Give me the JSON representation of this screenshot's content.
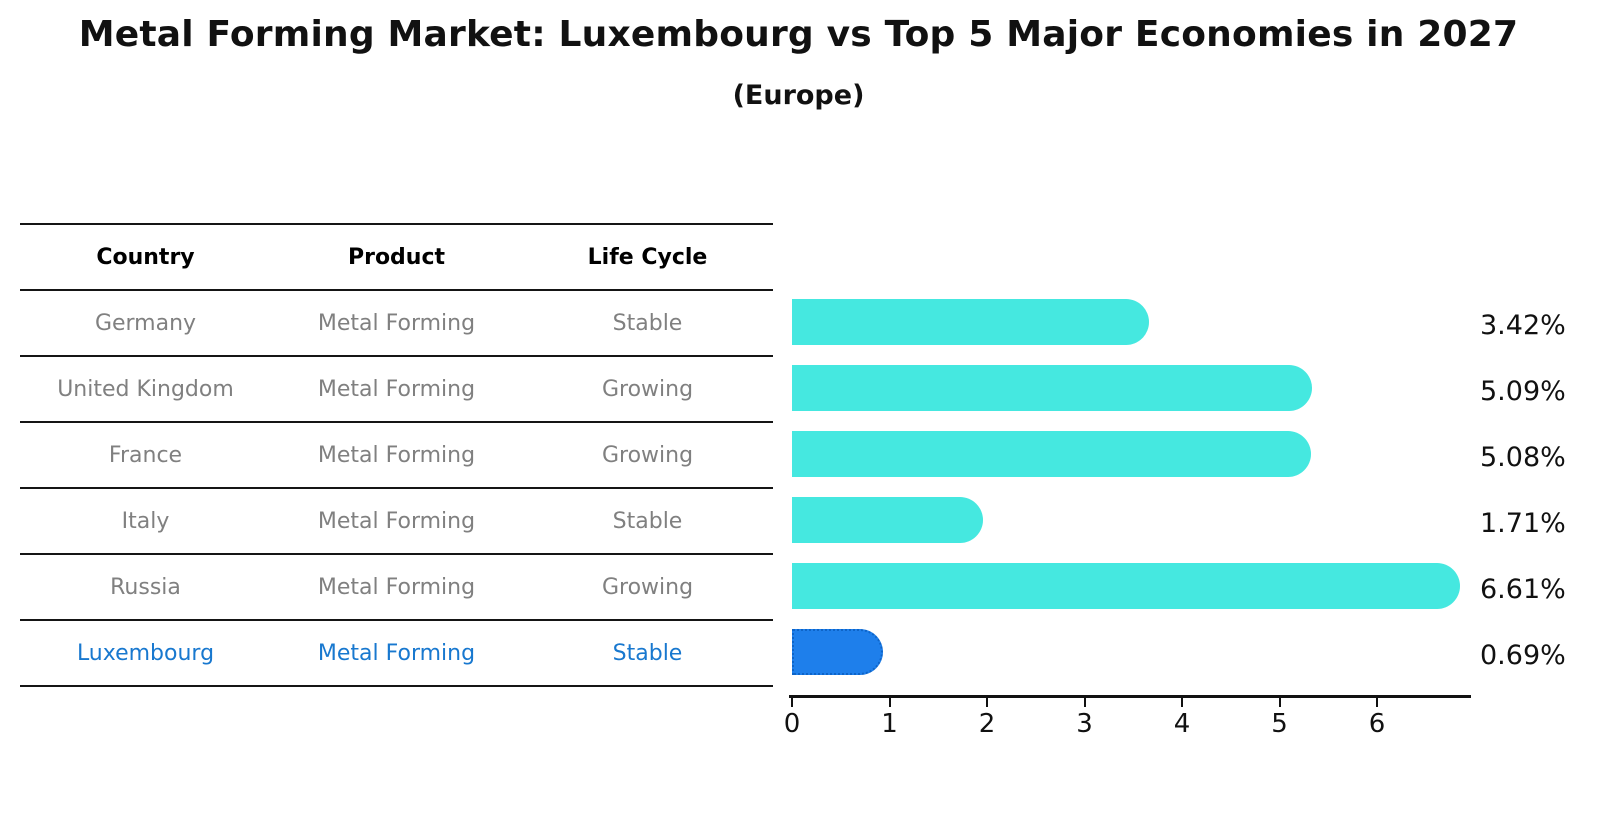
{
  "header": {
    "title": "Metal Forming Market: Luxembourg vs Top 5 Major Economies in 2027",
    "subtitle": "(Europe)"
  },
  "table": {
    "columns": [
      "Country",
      "Product",
      "Life Cycle"
    ],
    "rows": [
      {
        "country": "Germany",
        "product": "Metal Forming",
        "life_cycle": "Stable"
      },
      {
        "country": "United Kingdom",
        "product": "Metal Forming",
        "life_cycle": "Growing"
      },
      {
        "country": "France",
        "product": "Metal Forming",
        "life_cycle": "Growing"
      },
      {
        "country": "Italy",
        "product": "Metal Forming",
        "life_cycle": "Stable"
      },
      {
        "country": "Russia",
        "product": "Metal Forming",
        "life_cycle": "Growing"
      },
      {
        "country": "Luxembourg",
        "product": "Metal Forming",
        "life_cycle": "Stable"
      }
    ],
    "text_color": "#808080",
    "header_text_color": "#000000",
    "highlight_text_color": "#1878CF",
    "highlight_row_index": 5
  },
  "chart_data": {
    "type": "bar",
    "orientation": "horizontal",
    "title": "Metal Forming Market: Luxembourg vs Top 5 Major Economies in 2027",
    "subtitle": "(Europe)",
    "categories": [
      "Germany",
      "United Kingdom",
      "France",
      "Italy",
      "Russia",
      "Luxembourg"
    ],
    "values": [
      3.42,
      5.09,
      5.08,
      1.71,
      6.61,
      0.69
    ],
    "value_labels": [
      "3.42%",
      "5.09%",
      "5.08%",
      "1.71%",
      "6.61%",
      "0.69%"
    ],
    "xlabel": "",
    "ylabel": "",
    "xlim": [
      0,
      6.94
    ],
    "xticks": [
      "0",
      "1",
      "2",
      "3",
      "4",
      "5",
      "6"
    ],
    "grid": false,
    "legend": "none",
    "bar_color": "#45E8E0",
    "highlight_color": "#1E7FEB",
    "highlight_border_color": "#0D64C8",
    "highlight_index": 5
  }
}
